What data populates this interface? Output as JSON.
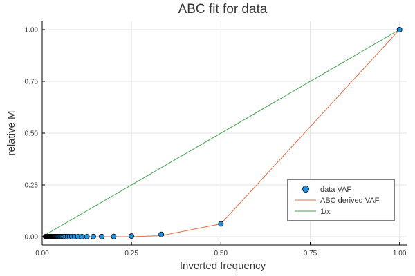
{
  "chart_data": {
    "type": "scatter",
    "title": "ABC fit for data",
    "xlabel": "Inverted frequency",
    "ylabel": "relative M",
    "xlim": [
      0,
      1.02
    ],
    "ylim": [
      -0.04,
      1.04
    ],
    "xticks": [
      0.0,
      0.25,
      0.5,
      0.75,
      1.0
    ],
    "xtick_labels": [
      "0.00",
      "0.25",
      "0.50",
      "0.75",
      "1.00"
    ],
    "yticks": [
      0.0,
      0.25,
      0.5,
      0.75,
      1.0
    ],
    "ytick_labels": [
      "0.00",
      "0.25",
      "0.50",
      "0.75",
      "1.00"
    ],
    "grid": true,
    "legend_position": "bottom-right",
    "series": [
      {
        "name": "data VAF",
        "kind": "scatter",
        "color": "#1e90e0",
        "x": [
          1.0,
          0.5,
          0.3333,
          0.25,
          0.2,
          0.1667,
          0.1429,
          0.125,
          0.1111,
          0.1,
          0.0909,
          0.0833,
          0.0769,
          0.0714,
          0.0667,
          0.0625,
          0.0588,
          0.0556,
          0.0526,
          0.05,
          0.0476,
          0.0455,
          0.0435,
          0.0417,
          0.04,
          0.0385,
          0.037,
          0.0357,
          0.0345,
          0.0333,
          0.0323,
          0.0313,
          0.0303,
          0.0294,
          0.0286,
          0.0278,
          0.027,
          0.0263,
          0.0256,
          0.025,
          0.0244,
          0.0238,
          0.0233,
          0.0227,
          0.0222,
          0.0217,
          0.0213,
          0.0208,
          0.0204,
          0.02,
          0.0196,
          0.0192,
          0.0189,
          0.0185,
          0.0182,
          0.0179,
          0.0175,
          0.0172,
          0.0169,
          0.0167,
          0.0164,
          0.0161,
          0.0159,
          0.0156,
          0.0154,
          0.0152,
          0.0149,
          0.0147,
          0.0145,
          0.0143,
          0.0141,
          0.0139,
          0.0137,
          0.0135,
          0.0133,
          0.0132,
          0.013,
          0.0128,
          0.0127,
          0.0125,
          0.0123,
          0.0122,
          0.012,
          0.0119,
          0.0118,
          0.0116,
          0.0115,
          0.0114,
          0.0112,
          0.0111,
          0.011,
          0.0109,
          0.0108,
          0.0106,
          0.0105,
          0.0104,
          0.0103,
          0.0102,
          0.0101,
          0.01
        ],
        "y": [
          1.0,
          0.062,
          0.011,
          0.003,
          0.001,
          0.0005,
          0.0003,
          0.0002,
          0.0001,
          0.0001,
          0.0001,
          0.0,
          0.0,
          0.0,
          0.0,
          0.0,
          0.0,
          0.0,
          0.0,
          0.0,
          0.0,
          0.0,
          0.0,
          0.0,
          0.0,
          0.0,
          0.0,
          0.0,
          0.0,
          0.0,
          0.0,
          0.0,
          0.0,
          0.0,
          0.0,
          0.0,
          0.0,
          0.0,
          0.0,
          0.0,
          0.0,
          0.0,
          0.0,
          0.0,
          0.0,
          0.0,
          0.0,
          0.0,
          0.0,
          0.0,
          0.0,
          0.0,
          0.0,
          0.0,
          0.0,
          0.0,
          0.0,
          0.0,
          0.0,
          0.0,
          0.0,
          0.0,
          0.0,
          0.0,
          0.0,
          0.0,
          0.0,
          0.0,
          0.0,
          0.0,
          0.0,
          0.0,
          0.0,
          0.0,
          0.0,
          0.0,
          0.0,
          0.0,
          0.0,
          0.0,
          0.0,
          0.0,
          0.0,
          0.0,
          0.0,
          0.0,
          0.0,
          0.0,
          0.0,
          0.0,
          0.0,
          0.0,
          0.0,
          0.0,
          0.0,
          0.0,
          0.0,
          0.0,
          0.0,
          0.0
        ]
      },
      {
        "name": "ABC derived VAF",
        "kind": "line",
        "color": "#e26f46",
        "x": [
          0.0,
          0.01,
          0.05,
          0.1,
          0.25,
          0.3333,
          0.5,
          1.0
        ],
        "y": [
          0.0,
          0.0,
          0.0,
          0.0,
          0.0,
          0.005,
          0.062,
          1.0
        ]
      },
      {
        "name": "1/x",
        "kind": "line",
        "color": "#3da44d",
        "x": [
          0.0,
          1.0
        ],
        "y": [
          0.0,
          1.0
        ]
      }
    ]
  }
}
